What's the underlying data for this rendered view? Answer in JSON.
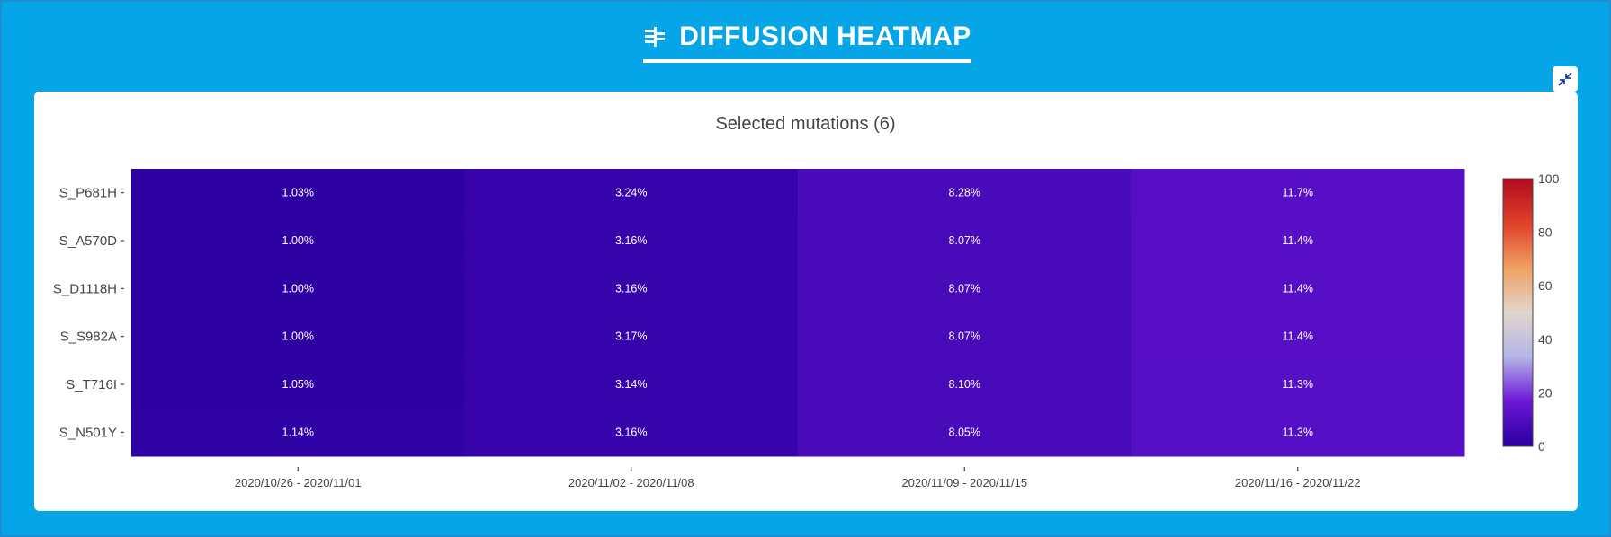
{
  "header": {
    "title": "DIFFUSION HEATMAP",
    "icon": "diffusion-icon"
  },
  "collapse_icon": "collapse-icon",
  "chart_data": {
    "type": "heatmap",
    "title": "Selected mutations (6)",
    "rows": [
      "S_P681H",
      "S_A570D",
      "S_D1118H",
      "S_S982A",
      "S_T716I",
      "S_N501Y"
    ],
    "columns": [
      "2020/10/26 - 2020/11/01",
      "2020/11/02 - 2020/11/08",
      "2020/11/09 - 2020/11/15",
      "2020/11/16 - 2020/11/22"
    ],
    "values": [
      [
        1.03,
        3.24,
        8.28,
        11.7
      ],
      [
        1.0,
        3.16,
        8.07,
        11.4
      ],
      [
        1.0,
        3.16,
        8.07,
        11.4
      ],
      [
        1.0,
        3.17,
        8.07,
        11.4
      ],
      [
        1.05,
        3.14,
        8.1,
        11.3
      ],
      [
        1.14,
        3.16,
        8.05,
        11.3
      ]
    ],
    "labels": [
      [
        "1.03%",
        "3.24%",
        "8.28%",
        "11.7%"
      ],
      [
        "1.00%",
        "3.16%",
        "8.07%",
        "11.4%"
      ],
      [
        "1.00%",
        "3.16%",
        "8.07%",
        "11.4%"
      ],
      [
        "1.00%",
        "3.17%",
        "8.07%",
        "11.4%"
      ],
      [
        "1.05%",
        "3.14%",
        "8.10%",
        "11.3%"
      ],
      [
        "1.14%",
        "3.16%",
        "8.05%",
        "11.3%"
      ]
    ],
    "colorscale": {
      "range": [
        0,
        100
      ],
      "ticks": [
        "0",
        "20",
        "40",
        "60",
        "80",
        "100"
      ],
      "stops": [
        "#2a00a0",
        "#6a16d6",
        "#b4b4e6",
        "#e0d6cc",
        "#f0a060",
        "#e0402a",
        "#b20a1e"
      ]
    }
  }
}
